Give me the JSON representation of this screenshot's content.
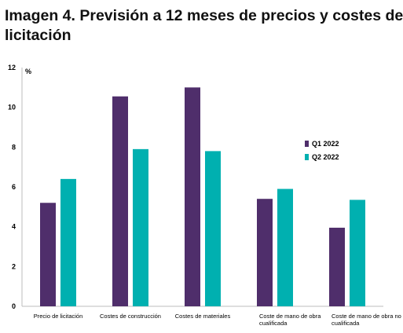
{
  "header": {
    "title_line1": "Imagen 4. Previsión a 12 meses de precios y costes de",
    "title_line2": "licitación"
  },
  "chart_data": {
    "type": "bar",
    "title": "Imagen 4. Previsión a 12 meses de precios y costes de licitación",
    "ylabel": "%",
    "ylim": [
      0,
      12
    ],
    "yticks": [
      0,
      2,
      4,
      6,
      8,
      10,
      12
    ],
    "grid": false,
    "legend_position": "right",
    "categories": [
      [
        "Precio de licitación"
      ],
      [
        "Costes de construcción"
      ],
      [
        "Costes de materiales"
      ],
      [
        "Coste de mano de obra",
        "cualificada"
      ],
      [
        "Coste de mano de obra no",
        "cualificada"
      ]
    ],
    "series": [
      {
        "name": "Q1 2022",
        "color": "#4f2e6b",
        "values": [
          5.2,
          10.55,
          11.0,
          5.4,
          3.95
        ]
      },
      {
        "name": "Q2 2022",
        "color": "#00b0b0",
        "values": [
          6.4,
          7.9,
          7.8,
          5.9,
          5.35
        ]
      }
    ]
  }
}
